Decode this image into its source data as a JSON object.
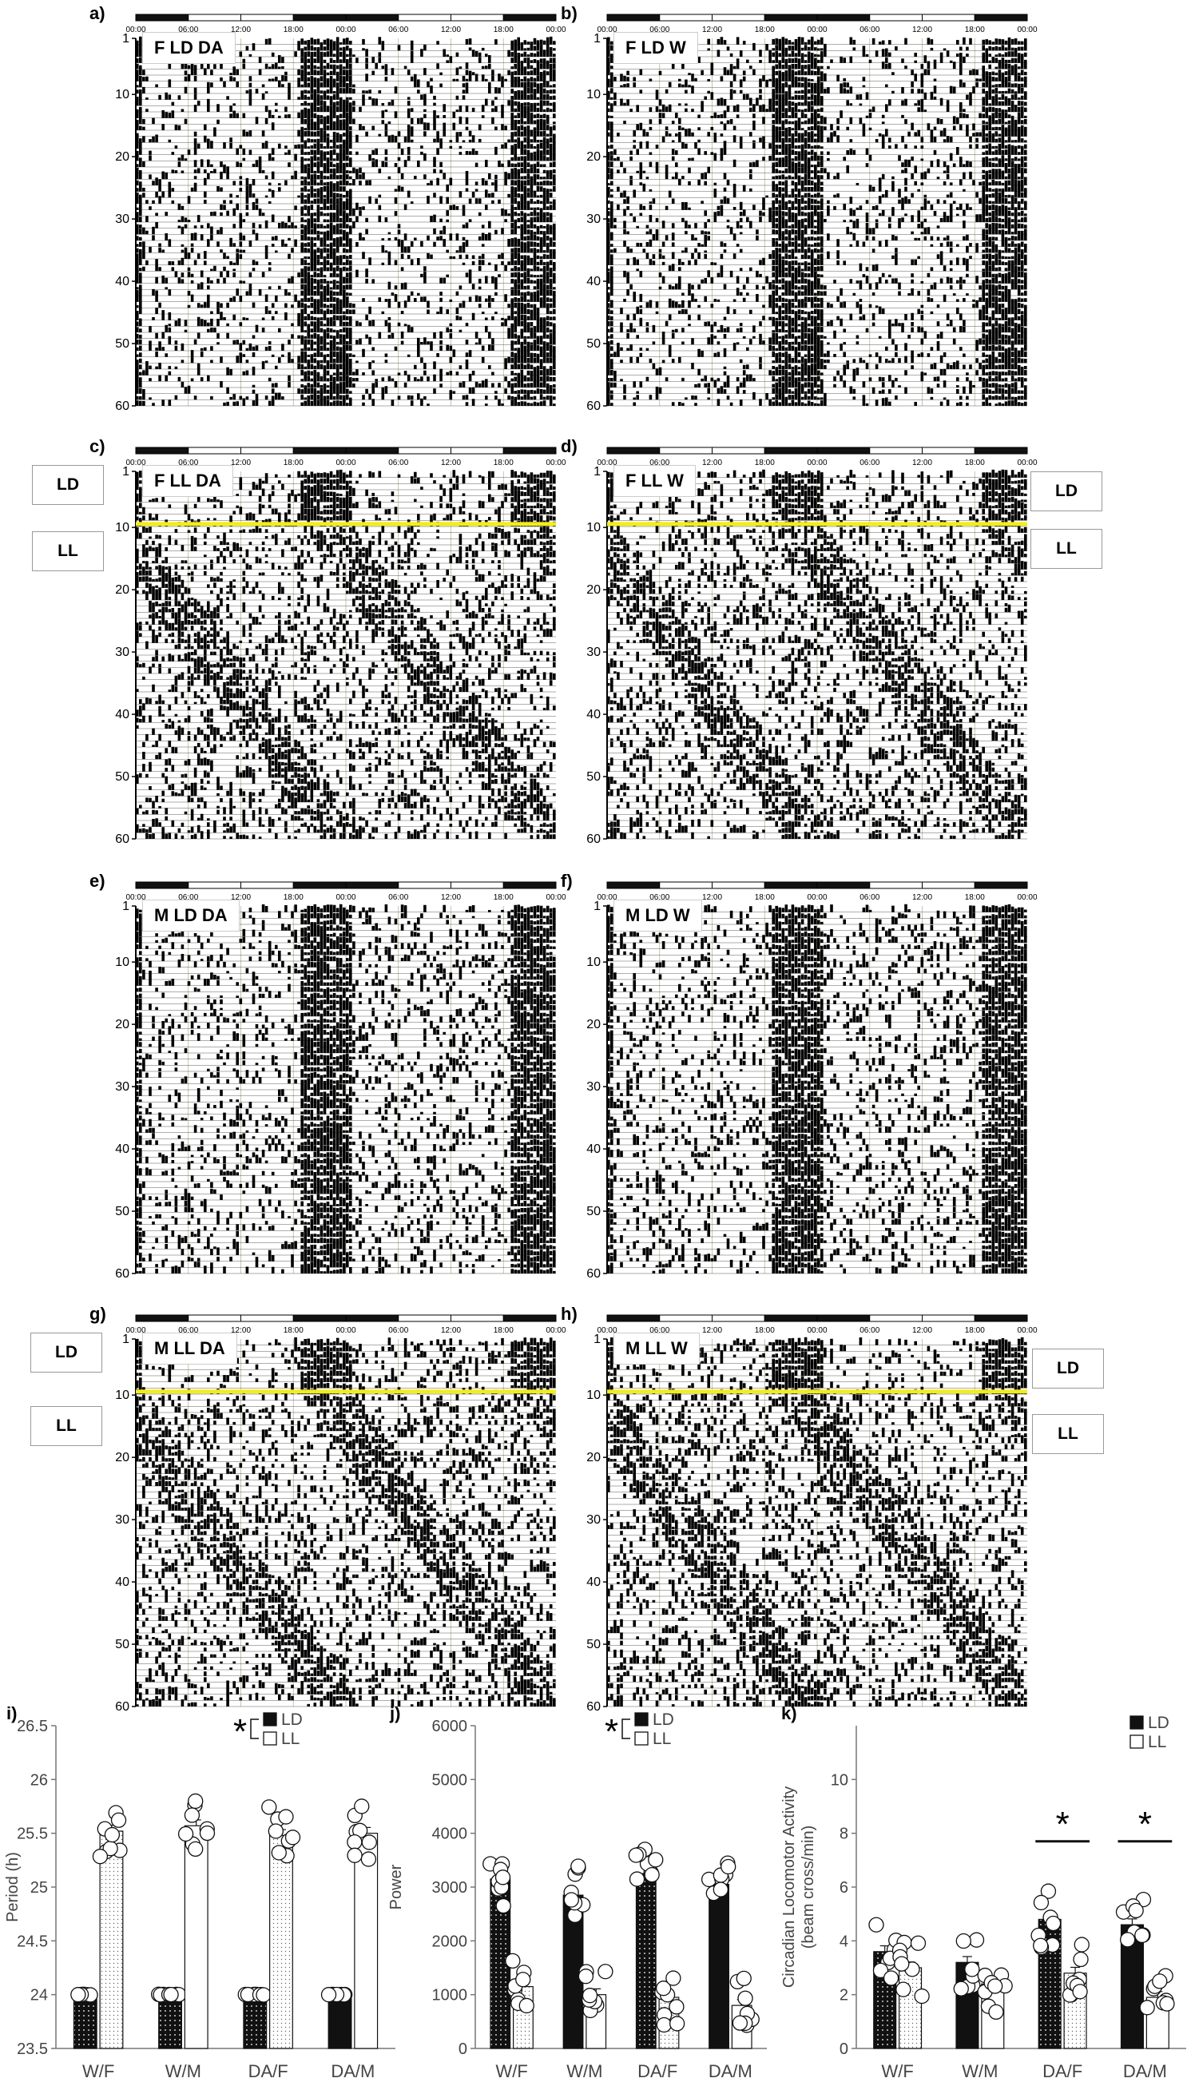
{
  "actograms": {
    "time_ticks": [
      "00:00",
      "06:00",
      "12:00",
      "18:00",
      "00:00",
      "06:00",
      "12:00",
      "18:00",
      "00:00"
    ],
    "day_ticks": [
      "1",
      "10",
      "20",
      "30",
      "40",
      "50",
      "60"
    ],
    "panels": [
      {
        "letter": "a)",
        "title": "F LD DA",
        "mode": "LD",
        "shift": false,
        "side_labels": []
      },
      {
        "letter": "b)",
        "title": "F LD W",
        "mode": "LD",
        "shift": false,
        "side_labels": []
      },
      {
        "letter": "c)",
        "title": "F LL DA",
        "mode": "LL",
        "shift": true,
        "side_labels": [
          "LD",
          "LL"
        ]
      },
      {
        "letter": "d)",
        "title": "F LL W",
        "mode": "LL",
        "shift": true,
        "side_labels": [
          "LD",
          "LL"
        ]
      },
      {
        "letter": "e)",
        "title": "M LD DA",
        "mode": "LD",
        "shift": false,
        "side_labels": []
      },
      {
        "letter": "f)",
        "title": "M LD W",
        "mode": "LD",
        "shift": false,
        "side_labels": []
      },
      {
        "letter": "g)",
        "title": "M LL DA",
        "mode": "LL",
        "shift": true,
        "side_labels": [
          "LD",
          "LL"
        ]
      },
      {
        "letter": "h)",
        "title": "M LL W",
        "mode": "LL",
        "shift": true,
        "side_labels": [
          "LD",
          "LL"
        ]
      }
    ]
  },
  "colors": {
    "ld_bar": "#111111",
    "ll_bar": "#ffffff",
    "marker": "#f2ec1f",
    "grid": "#b8b89a"
  },
  "chart_data": [
    {
      "type": "bar",
      "panel": "i)",
      "ylabel": "Period (h)",
      "ylim": [
        23.5,
        26.5
      ],
      "yticks": [
        "23.5",
        "24",
        "24.5",
        "25",
        "25.5",
        "26",
        "26.5"
      ],
      "categories": [
        "W/F",
        "W/M",
        "DA/F",
        "DA/M"
      ],
      "legend": [
        "LD",
        "LL"
      ],
      "sig_mark": "*",
      "series": [
        {
          "name": "LD",
          "values": [
            24.0,
            24.0,
            24.0,
            24.0
          ]
        },
        {
          "name": "LL",
          "values": [
            25.52,
            25.57,
            25.48,
            25.5
          ]
        }
      ]
    },
    {
      "type": "bar",
      "panel": "j)",
      "ylabel": "Power",
      "ylim": [
        0,
        6000
      ],
      "yticks": [
        "0",
        "1000",
        "2000",
        "3000",
        "4000",
        "5000",
        "6000"
      ],
      "categories": [
        "W/F",
        "W/M",
        "DA/F",
        "DA/M"
      ],
      "legend": [
        "LD",
        "LL"
      ],
      "sig_mark": "*",
      "series": [
        {
          "name": "LD",
          "values": [
            3150,
            2850,
            3250,
            3050
          ]
        },
        {
          "name": "LL",
          "values": [
            1150,
            1000,
            950,
            800
          ]
        }
      ]
    },
    {
      "type": "bar",
      "panel": "k)",
      "ylabel": "Circadian Locomotor Activity (beam cross/min)",
      "ylim": [
        0,
        12
      ],
      "yticks": [
        "0",
        "2",
        "4",
        "6",
        "8",
        "10"
      ],
      "categories": [
        "W/F",
        "W/M",
        "DA/F",
        "DA/M"
      ],
      "legend": [
        "LD",
        "LL"
      ],
      "sig_labels": [
        "*",
        "*"
      ],
      "series": [
        {
          "name": "LD",
          "values": [
            3.6,
            3.2,
            4.8,
            4.6
          ]
        },
        {
          "name": "LL",
          "values": [
            3.0,
            2.4,
            2.8,
            1.9
          ]
        }
      ]
    }
  ]
}
